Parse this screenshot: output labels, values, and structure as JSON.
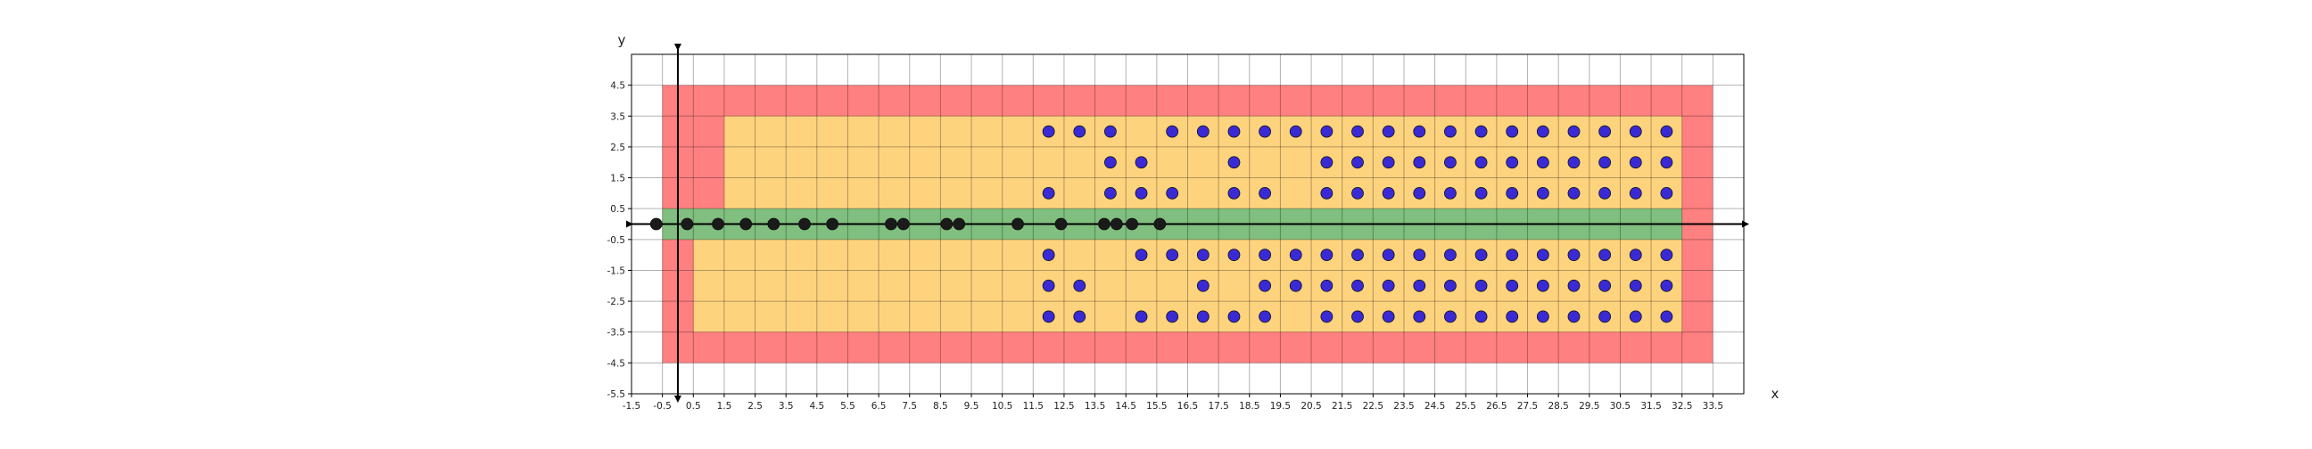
{
  "chart_data": {
    "type": "scatter",
    "xlabel": "x",
    "ylabel": "y",
    "xlim": [
      -1.5,
      34.5
    ],
    "ylim": [
      -5.5,
      5.5
    ],
    "x_ticks": [
      "-1.5",
      "-0.5",
      "0.5",
      "1.5",
      "2.5",
      "3.5",
      "4.5",
      "5.5",
      "6.5",
      "7.5",
      "8.5",
      "9.5",
      "10.5",
      "11.5",
      "12.5",
      "13.5",
      "14.5",
      "15.5",
      "16.5",
      "17.5",
      "18.5",
      "19.5",
      "20.5",
      "21.5",
      "22.5",
      "23.5",
      "24.5",
      "25.5",
      "26.5",
      "27.5",
      "28.5",
      "29.5",
      "30.5",
      "31.5",
      "32.5",
      "33.5"
    ],
    "y_ticks": [
      "4.5",
      "3.5",
      "2.5",
      "1.5",
      "0.5",
      "-0.5",
      "-1.5",
      "-2.5",
      "-3.5",
      "-4.5",
      "-5.5"
    ],
    "grid": true,
    "regions": [
      {
        "color": "#ff8080",
        "x": [
          -0.5,
          33.5
        ],
        "y": [
          -4.5,
          4.5
        ]
      },
      {
        "color": "#fed37e",
        "x": [
          0.5,
          32.5
        ],
        "y": [
          -3.5,
          3.5
        ]
      },
      {
        "color": "#ff8080",
        "x": [
          0.5,
          1.5
        ],
        "y": [
          0.5,
          3.5
        ]
      },
      {
        "color": "#ff8080",
        "x": [
          -0.5,
          0.5
        ],
        "y": [
          -3.5,
          -0.5
        ]
      },
      {
        "color": "#80bf7f",
        "x": [
          -0.5,
          32.5
        ],
        "y": [
          -0.5,
          0.5
        ]
      }
    ],
    "series": [
      {
        "color": "#1a1a1a",
        "points": [
          [
            -0.7,
            0
          ],
          [
            0.3,
            0
          ],
          [
            1.3,
            0
          ],
          [
            2.2,
            0
          ],
          [
            3.1,
            0
          ],
          [
            4.1,
            0
          ],
          [
            5.0,
            0
          ],
          [
            6.9,
            0
          ],
          [
            7.3,
            0
          ],
          [
            8.7,
            0
          ],
          [
            9.1,
            0
          ],
          [
            11.0,
            0
          ],
          [
            12.4,
            0
          ],
          [
            13.8,
            0
          ],
          [
            14.2,
            0
          ],
          [
            14.7,
            0
          ],
          [
            15.6,
            0
          ]
        ]
      },
      {
        "color": "#3a2ad6",
        "points": [
          [
            12,
            3
          ],
          [
            13,
            3
          ],
          [
            14,
            3
          ],
          [
            16,
            3
          ],
          [
            17,
            3
          ],
          [
            18,
            3
          ],
          [
            19,
            3
          ],
          [
            20,
            3
          ],
          [
            21,
            3
          ],
          [
            22,
            3
          ],
          [
            23,
            3
          ],
          [
            24,
            3
          ],
          [
            25,
            3
          ],
          [
            26,
            3
          ],
          [
            27,
            3
          ],
          [
            28,
            3
          ],
          [
            29,
            3
          ],
          [
            30,
            3
          ],
          [
            31,
            3
          ],
          [
            32,
            3
          ],
          [
            14,
            2
          ],
          [
            15,
            2
          ],
          [
            18,
            2
          ],
          [
            21,
            2
          ],
          [
            22,
            2
          ],
          [
            23,
            2
          ],
          [
            24,
            2
          ],
          [
            25,
            2
          ],
          [
            26,
            2
          ],
          [
            27,
            2
          ],
          [
            28,
            2
          ],
          [
            29,
            2
          ],
          [
            30,
            2
          ],
          [
            31,
            2
          ],
          [
            32,
            2
          ],
          [
            12,
            1
          ],
          [
            14,
            1
          ],
          [
            15,
            1
          ],
          [
            16,
            1
          ],
          [
            18,
            1
          ],
          [
            19,
            1
          ],
          [
            21,
            1
          ],
          [
            22,
            1
          ],
          [
            23,
            1
          ],
          [
            24,
            1
          ],
          [
            25,
            1
          ],
          [
            26,
            1
          ],
          [
            27,
            1
          ],
          [
            28,
            1
          ],
          [
            29,
            1
          ],
          [
            30,
            1
          ],
          [
            31,
            1
          ],
          [
            32,
            1
          ],
          [
            12,
            -1
          ],
          [
            15,
            -1
          ],
          [
            16,
            -1
          ],
          [
            17,
            -1
          ],
          [
            18,
            -1
          ],
          [
            19,
            -1
          ],
          [
            20,
            -1
          ],
          [
            21,
            -1
          ],
          [
            22,
            -1
          ],
          [
            23,
            -1
          ],
          [
            24,
            -1
          ],
          [
            25,
            -1
          ],
          [
            26,
            -1
          ],
          [
            27,
            -1
          ],
          [
            28,
            -1
          ],
          [
            29,
            -1
          ],
          [
            30,
            -1
          ],
          [
            31,
            -1
          ],
          [
            32,
            -1
          ],
          [
            12,
            -2
          ],
          [
            13,
            -2
          ],
          [
            17,
            -2
          ],
          [
            19,
            -2
          ],
          [
            20,
            -2
          ],
          [
            21,
            -2
          ],
          [
            22,
            -2
          ],
          [
            23,
            -2
          ],
          [
            24,
            -2
          ],
          [
            25,
            -2
          ],
          [
            26,
            -2
          ],
          [
            27,
            -2
          ],
          [
            28,
            -2
          ],
          [
            29,
            -2
          ],
          [
            30,
            -2
          ],
          [
            31,
            -2
          ],
          [
            32,
            -2
          ],
          [
            12,
            -3
          ],
          [
            13,
            -3
          ],
          [
            15,
            -3
          ],
          [
            16,
            -3
          ],
          [
            17,
            -3
          ],
          [
            18,
            -3
          ],
          [
            19,
            -3
          ],
          [
            21,
            -3
          ],
          [
            22,
            -3
          ],
          [
            23,
            -3
          ],
          [
            24,
            -3
          ],
          [
            25,
            -3
          ],
          [
            26,
            -3
          ],
          [
            27,
            -3
          ],
          [
            28,
            -3
          ],
          [
            29,
            -3
          ],
          [
            30,
            -3
          ],
          [
            31,
            -3
          ],
          [
            32,
            -3
          ]
        ]
      }
    ]
  }
}
